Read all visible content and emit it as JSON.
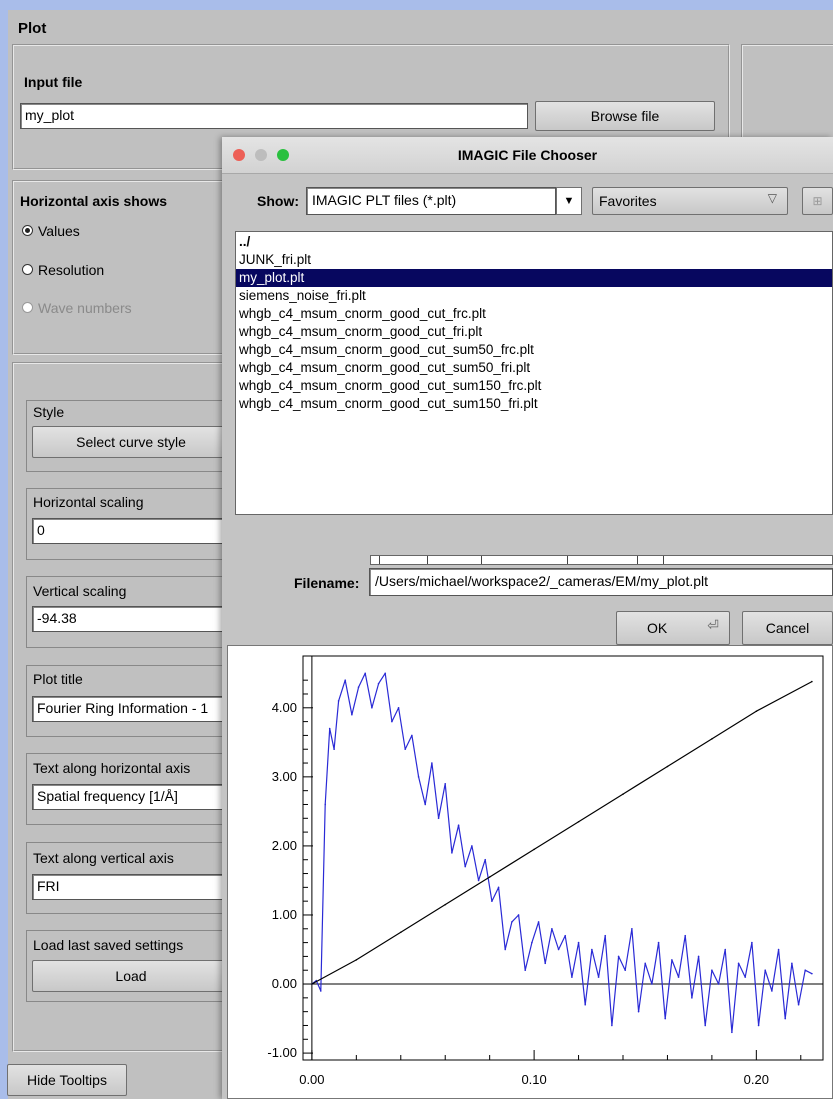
{
  "main": {
    "title": "Plot",
    "input_file_label": "Input file",
    "input_file_value": "my_plot",
    "browse_label": "Browse file",
    "horizontal_axis_label": "Horizontal axis shows",
    "radio_values": "Values",
    "radio_resolution": "Resolution",
    "radio_wave_numbers": "Wave numbers",
    "style_label": "Style",
    "select_curve_style": "Select curve style",
    "horizontal_scaling_label": "Horizontal scaling",
    "horizontal_scaling_value": "0",
    "vertical_scaling_label": "Vertical scaling",
    "vertical_scaling_value": "-94.38",
    "plot_title_label": "Plot title",
    "plot_title_value": "Fourier Ring Information - 1",
    "text_horizontal_label": "Text along horizontal axis",
    "text_horizontal_value": "Spatial frequency [1/Å]",
    "text_vertical_label": "Text along vertical axis",
    "text_vertical_value": "FRI",
    "load_settings_label": "Load last saved settings",
    "load_button": "Load",
    "hide_tooltips": "Hide Tooltips"
  },
  "dialog": {
    "title": "IMAGIC File Chooser",
    "show_label": "Show:",
    "filter_value": "IMAGIC PLT files (*.plt)",
    "favorites_label": "Favorites",
    "files": [
      "../",
      "JUNK_fri.plt",
      "my_plot.plt",
      "siemens_noise_fri.plt",
      "whgb_c4_msum_cnorm_good_cut_frc.plt",
      "whgb_c4_msum_cnorm_good_cut_fri.plt",
      "whgb_c4_msum_cnorm_good_cut_sum50_frc.plt",
      "whgb_c4_msum_cnorm_good_cut_sum50_fri.plt",
      "whgb_c4_msum_cnorm_good_cut_sum150_frc.plt",
      "whgb_c4_msum_cnorm_good_cut_sum150_fri.plt"
    ],
    "selected_index": 2,
    "filename_label": "Filename:",
    "filename_value": "/Users/michael/workspace2/_cameras/EM/my_plot.plt",
    "ok_label": "OK",
    "cancel_label": "Cancel"
  },
  "colors": {
    "series_fri": "#2a2ad6",
    "series_threshold": "#000000",
    "selection": "#07075f"
  },
  "chart_data": {
    "type": "line",
    "y_tick_labels": [
      "4.00",
      "3.00",
      "2.00",
      "1.00",
      "0.00",
      "-1.00"
    ],
    "x_tick_labels": [
      "0.00",
      "0.10",
      "0.20"
    ],
    "xlim": [
      -0.004,
      0.23
    ],
    "ylim": [
      -1.1,
      4.75
    ],
    "grid": false,
    "series": [
      {
        "color": "#2a2ad6",
        "x": [
          0.0,
          0.002,
          0.004,
          0.006,
          0.008,
          0.01,
          0.012,
          0.015,
          0.018,
          0.021,
          0.024,
          0.027,
          0.03,
          0.033,
          0.036,
          0.039,
          0.042,
          0.045,
          0.048,
          0.051,
          0.054,
          0.057,
          0.06,
          0.063,
          0.066,
          0.069,
          0.072,
          0.075,
          0.078,
          0.081,
          0.084,
          0.087,
          0.09,
          0.093,
          0.096,
          0.099,
          0.102,
          0.105,
          0.108,
          0.111,
          0.114,
          0.117,
          0.12,
          0.123,
          0.126,
          0.129,
          0.132,
          0.135,
          0.138,
          0.141,
          0.144,
          0.147,
          0.15,
          0.153,
          0.156,
          0.159,
          0.162,
          0.165,
          0.168,
          0.171,
          0.174,
          0.177,
          0.18,
          0.183,
          0.186,
          0.189,
          0.192,
          0.195,
          0.198,
          0.201,
          0.204,
          0.207,
          0.21,
          0.213,
          0.216,
          0.219,
          0.222,
          0.225
        ],
        "y": [
          0.0,
          0.05,
          -0.1,
          2.6,
          3.7,
          3.4,
          4.1,
          4.4,
          3.9,
          4.3,
          4.5,
          4.0,
          4.35,
          4.5,
          3.8,
          4.0,
          3.4,
          3.6,
          3.0,
          2.6,
          3.2,
          2.4,
          2.9,
          1.9,
          2.3,
          1.7,
          2.0,
          1.5,
          1.8,
          1.2,
          1.4,
          0.5,
          0.9,
          1.0,
          0.2,
          0.6,
          0.9,
          0.3,
          0.8,
          0.5,
          0.7,
          0.1,
          0.6,
          -0.3,
          0.5,
          0.1,
          0.7,
          -0.6,
          0.4,
          0.2,
          0.8,
          -0.4,
          0.3,
          0.0,
          0.6,
          -0.5,
          0.35,
          0.1,
          0.7,
          -0.2,
          0.4,
          -0.6,
          0.2,
          0.0,
          0.5,
          -0.7,
          0.3,
          0.1,
          0.6,
          -0.6,
          0.2,
          -0.1,
          0.5,
          -0.5,
          0.3,
          -0.3,
          0.2,
          0.15
        ]
      },
      {
        "color": "#000000",
        "x": [
          0.0,
          0.02,
          0.04,
          0.06,
          0.08,
          0.1,
          0.12,
          0.14,
          0.16,
          0.18,
          0.2,
          0.225
        ],
        "y": [
          0.0,
          0.35,
          0.75,
          1.15,
          1.55,
          1.95,
          2.35,
          2.75,
          3.15,
          3.55,
          3.95,
          4.38
        ]
      }
    ]
  }
}
